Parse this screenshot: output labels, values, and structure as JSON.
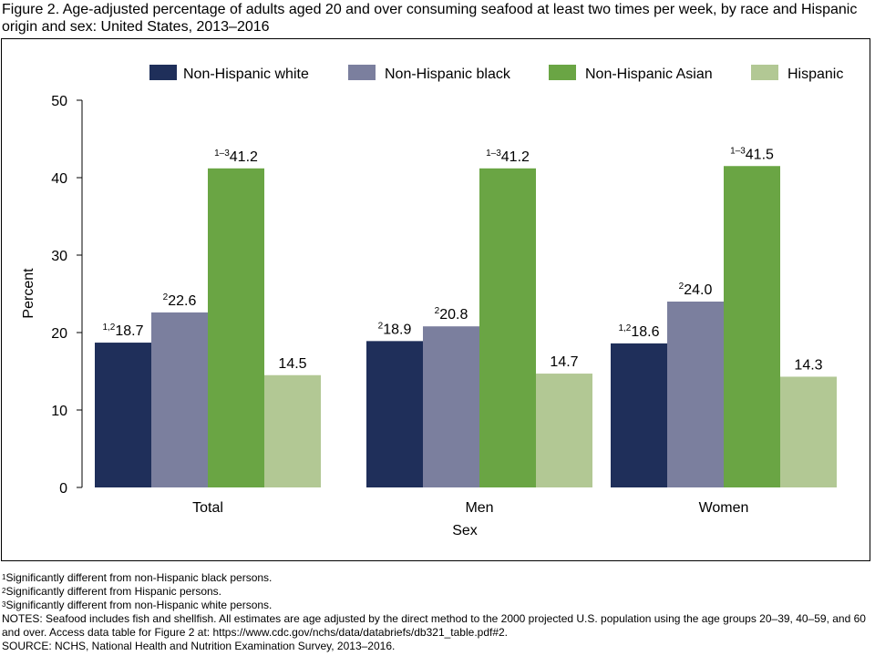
{
  "figure": {
    "title": "Figure 2. Age-adjusted percentage of adults aged 20 and over consuming seafood at least two times per week, by race and Hispanic origin and sex: United States, 2013–2016"
  },
  "chart_data": {
    "type": "bar",
    "title": "",
    "xlabel": "Sex",
    "ylabel": "Percent",
    "ylim": [
      0,
      50
    ],
    "yticks": [
      0,
      10,
      20,
      30,
      40,
      50
    ],
    "grid": false,
    "legend_position": "top",
    "categories": [
      "Total",
      "Men",
      "Women"
    ],
    "series": [
      {
        "name": "Non-Hispanic white",
        "color": "#1f2f5a",
        "values": [
          18.7,
          18.9,
          18.6
        ],
        "labels": [
          "18.7",
          "18.9",
          "18.6"
        ],
        "superscripts": [
          "1,2",
          "2",
          "1,2"
        ]
      },
      {
        "name": "Non-Hispanic black",
        "color": "#7b7f9e",
        "values": [
          22.6,
          20.8,
          24.0
        ],
        "labels": [
          "22.6",
          "20.8",
          "24.0"
        ],
        "superscripts": [
          "2",
          "2",
          "2"
        ]
      },
      {
        "name": "Non-Hispanic Asian",
        "color": "#6aa544",
        "values": [
          41.2,
          41.2,
          41.5
        ],
        "labels": [
          "41.2",
          "41.2",
          "41.5"
        ],
        "superscripts": [
          "1–3",
          "1–3",
          "1–3"
        ]
      },
      {
        "name": "Hispanic",
        "color": "#b2c894",
        "values": [
          14.5,
          14.7,
          14.3
        ],
        "labels": [
          "14.5",
          "14.7",
          "14.3"
        ],
        "superscripts": [
          "",
          "",
          ""
        ]
      }
    ]
  },
  "footnotes": {
    "note1": {
      "sup": "1",
      "text": "Significantly different from non-Hispanic black persons."
    },
    "note2": {
      "sup": "2",
      "text": "Significantly different from Hispanic persons."
    },
    "note3": {
      "sup": "3",
      "text": "Significantly different from non-Hispanic white persons."
    },
    "notes": "NOTES: Seafood includes fish and shellfish. All estimates are age adjusted by the direct method to the 2000 projected U.S. population using the age groups 20–39, 40–59, and 60 and over. Access data table for Figure 2 at: https://www.cdc.gov/nchs/data/databriefs/db321_table.pdf#2.",
    "source": "SOURCE: NCHS, National Health and Nutrition Examination Survey, 2013–2016."
  }
}
